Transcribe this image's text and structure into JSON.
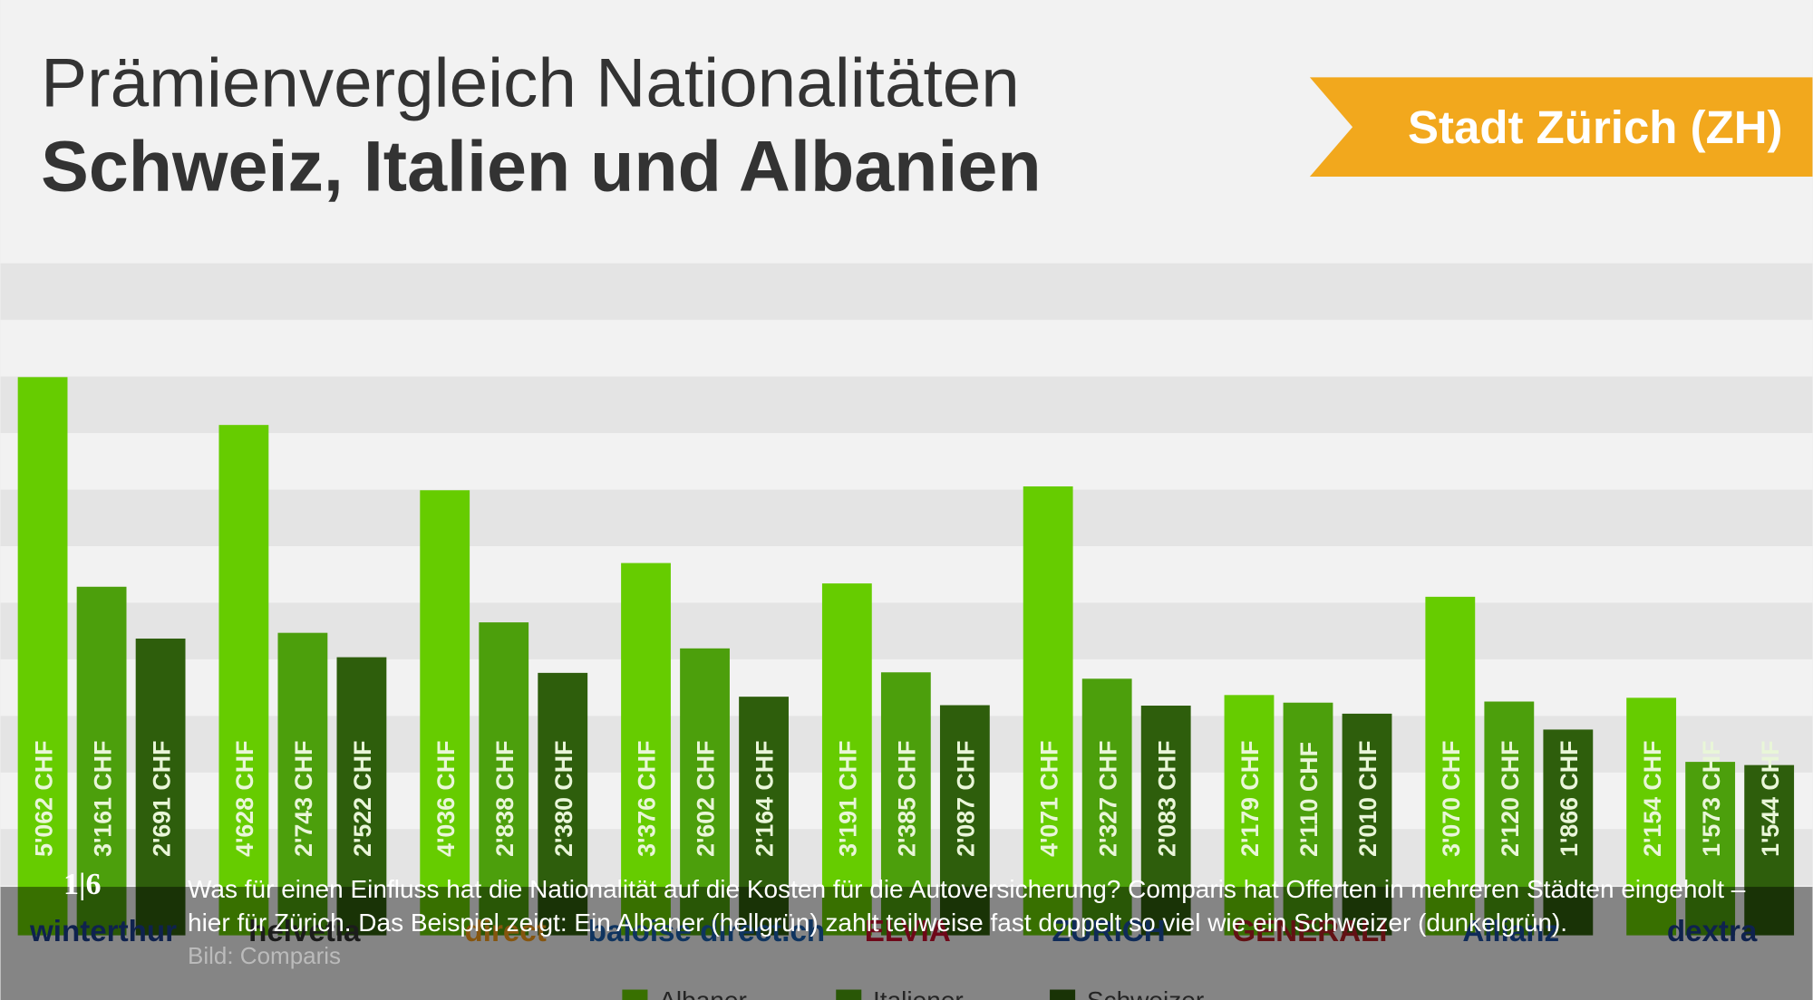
{
  "chart_data": {
    "type": "bar",
    "title": "Prämienvergleich Nationalitäten",
    "subtitle": "Schweiz, Italien und Albanien",
    "badge": "Stadt Zürich (ZH)",
    "categories": [
      "winterthur",
      "helvetia",
      "direct",
      "baloise direct.ch",
      "ELVIA",
      "ZURICH",
      "GENERALI",
      "Allianz",
      "dextra"
    ],
    "series": [
      {
        "name": "Albaner",
        "color": "#66cc00",
        "values": [
          5062,
          4628,
          4036,
          3376,
          3191,
          4071,
          2179,
          3070,
          2154
        ],
        "value_labels": [
          "5'062 CHF",
          "4'628 CHF",
          "4'036 CHF",
          "3'376 CHF",
          "3'191 CHF",
          "4'071 CHF",
          "2'179 CHF",
          "3'070 CHF",
          "2'154 CHF"
        ]
      },
      {
        "name": "Italiener",
        "color": "#4c9f0c",
        "values": [
          3161,
          2743,
          2838,
          2602,
          2385,
          2327,
          2110,
          2120,
          1573
        ],
        "value_labels": [
          "3'161 CHF",
          "2'743 CHF",
          "2'838 CHF",
          "2'602 CHF",
          "2'385 CHF",
          "2'327 CHF",
          "2'110 CHF",
          "2'120 CHF",
          "1'573 CHF"
        ]
      },
      {
        "name": "Schweizer",
        "color": "#2e5e0c",
        "values": [
          2691,
          2522,
          2380,
          2164,
          2087,
          2083,
          2010,
          1866,
          1544
        ],
        "value_labels": [
          "2'691 CHF",
          "2'522 CHF",
          "2'380 CHF",
          "2'164 CHF",
          "2'087 CHF",
          "2'083 CHF",
          "2'010 CHF",
          "1'866 CHF",
          "1'544 CHF"
        ]
      }
    ]
  },
  "gallery": {
    "counter": "1|6",
    "caption": "Was für einen Einfluss hat die Nationalität auf die Kosten für die Autoversicherung? Comparis hat Offerten in mehreren Städten eingeholt – hier für Zürich. Das Beispiel zeigt: Ein Albaner (hellgrün) zahlt teilweise fast doppelt so viel wie ein Schweizer (dunkelgrün).",
    "credit": "Bild: Comparis"
  }
}
